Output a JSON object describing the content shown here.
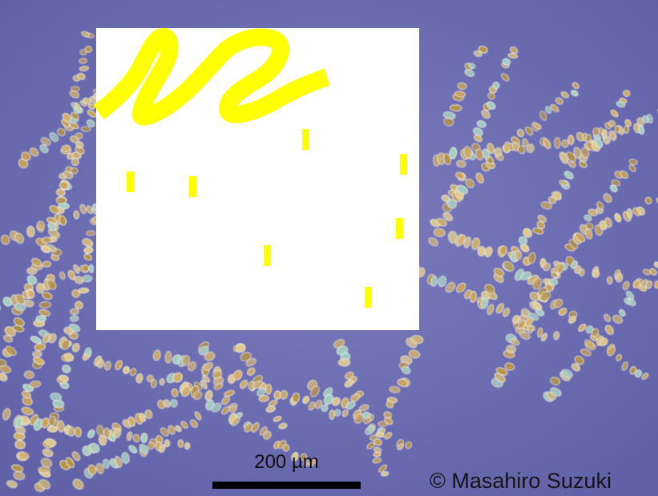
{
  "image": {
    "subject": "colonial diatom cells",
    "background_color": "#7272b4",
    "cell_color": "#c7a05a",
    "overlay_color": "#ffffff",
    "scribble_color": "#ffff00"
  },
  "scale_bar": {
    "label": "200 µm"
  },
  "credit": {
    "text": "© Masahiro Suzuki"
  }
}
